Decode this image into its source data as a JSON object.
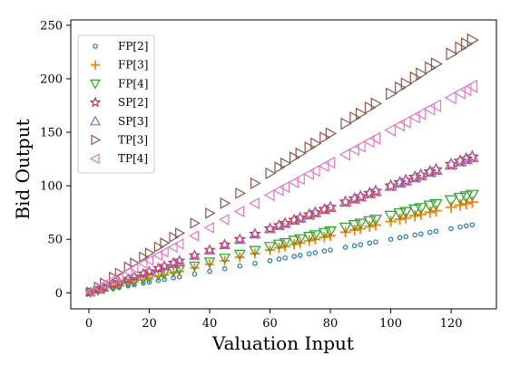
{
  "chart_data": {
    "type": "scatter",
    "title": "",
    "xlabel": "Valuation Input",
    "ylabel": "Bid Output",
    "xlim": [
      -6,
      135
    ],
    "ylim": [
      -15,
      255
    ],
    "xticks": [
      0,
      20,
      40,
      60,
      80,
      100,
      120
    ],
    "yticks": [
      0,
      50,
      100,
      150,
      200,
      250
    ],
    "grid": false,
    "legend_position": "top-left",
    "x": [
      0.5,
      3,
      5,
      8,
      10,
      13,
      15,
      18,
      20,
      23,
      25,
      28,
      30,
      35,
      40,
      45,
      50,
      55,
      60,
      63,
      65,
      68,
      70,
      73,
      75,
      78,
      80,
      85,
      88,
      90,
      93,
      95,
      100,
      103,
      105,
      108,
      110,
      113,
      115,
      120,
      123,
      125,
      127
    ],
    "series": [
      {
        "name": "FP[2]",
        "marker": "circle",
        "color": "#1f77b4",
        "slope": 0.5,
        "y": [
          0.25,
          1.5,
          2.5,
          4,
          5,
          6.5,
          7.5,
          9,
          10,
          11.5,
          12.5,
          14,
          15,
          17.5,
          20,
          22.5,
          25,
          27.5,
          30,
          31.5,
          32.5,
          34,
          35,
          36.5,
          37.5,
          39,
          40,
          42.5,
          44,
          45,
          46.5,
          47.5,
          50,
          51.5,
          52.5,
          54,
          55,
          56.5,
          57.5,
          60,
          61.5,
          62.5,
          63.5
        ]
      },
      {
        "name": "FP[3]",
        "marker": "plus",
        "color": "#ff7f0e",
        "slope": 0.667,
        "y": [
          0.33,
          2,
          3.3,
          5.3,
          6.7,
          8.7,
          10,
          12,
          13.3,
          15.3,
          16.7,
          18.7,
          20,
          23.3,
          26.7,
          30,
          33.3,
          36.7,
          40,
          42,
          43.3,
          45.3,
          46.7,
          48.7,
          50,
          52,
          53.3,
          56.7,
          58.7,
          60,
          62,
          63.3,
          66.7,
          68.7,
          70,
          72,
          73.3,
          75.3,
          76.7,
          80,
          82,
          83.3,
          84.7
        ]
      },
      {
        "name": "FP[4]",
        "marker": "triangle-down",
        "color": "#2ca02c",
        "slope": 0.72,
        "y": [
          0.36,
          2.2,
          3.6,
          5.8,
          7.2,
          9.4,
          10.8,
          13,
          14.4,
          16.6,
          18,
          20.2,
          21.6,
          25.2,
          28.8,
          32.4,
          36,
          39.6,
          43.2,
          45.4,
          46.8,
          49,
          50.4,
          52.6,
          54,
          56.2,
          57.6,
          61.2,
          63.4,
          64.8,
          67,
          68.4,
          72,
          74.2,
          75.6,
          77.8,
          79.2,
          81.4,
          82.8,
          86.4,
          88.6,
          90,
          91.4
        ]
      },
      {
        "name": "SP[2]",
        "marker": "star",
        "color": "#d62728",
        "slope": 1.0,
        "y": [
          0.5,
          3,
          5,
          8,
          10,
          13,
          15,
          18,
          20,
          23,
          25,
          28,
          30,
          35,
          40,
          45,
          50,
          55,
          60,
          63,
          65,
          68,
          70,
          73,
          75,
          78,
          80,
          85,
          88,
          90,
          93,
          95,
          100,
          103,
          105,
          108,
          110,
          113,
          115,
          120,
          123,
          125,
          127
        ]
      },
      {
        "name": "SP[3]",
        "marker": "triangle-up",
        "color": "#9467bd",
        "slope": 1.0,
        "y": [
          0.5,
          3,
          5,
          8,
          10,
          13,
          15,
          18,
          20,
          23,
          25,
          28,
          30,
          35,
          40,
          45,
          50,
          55,
          60,
          63,
          65,
          68,
          70,
          73,
          75,
          78,
          80,
          85,
          88,
          90,
          93,
          95,
          100,
          103,
          105,
          108,
          110,
          113,
          115,
          120,
          123,
          125,
          127
        ]
      },
      {
        "name": "TP[3]",
        "marker": "triangle-right",
        "color": "#8c564b",
        "slope": 1.86,
        "y": [
          0.9,
          5.6,
          9.3,
          14.9,
          18.6,
          24.2,
          27.9,
          33.5,
          37.2,
          42.8,
          46.5,
          52.1,
          55.8,
          65.1,
          74.4,
          83.7,
          93,
          102.3,
          111.6,
          117.2,
          120.9,
          126.5,
          130.2,
          135.8,
          139.5,
          145.1,
          148.8,
          158.1,
          163.7,
          167.4,
          173,
          176.7,
          186,
          191.6,
          195.3,
          200.9,
          204.6,
          210.2,
          213.9,
          223.2,
          228.8,
          232.5,
          236.2
        ]
      },
      {
        "name": "TP[4]",
        "marker": "triangle-left",
        "color": "#e377c2",
        "slope": 1.52,
        "y": [
          0.8,
          4.6,
          7.6,
          12.2,
          15.2,
          19.8,
          22.8,
          27.4,
          30.4,
          35,
          38,
          42.6,
          45.6,
          53.2,
          60.8,
          68.4,
          76,
          83.6,
          91.2,
          95.8,
          98.8,
          103.4,
          106.4,
          111,
          114,
          118.6,
          121.6,
          129.2,
          133.8,
          136.8,
          141.4,
          144.4,
          152,
          156.6,
          159.6,
          164.2,
          167.2,
          171.8,
          174.8,
          182.4,
          187,
          190,
          193
        ]
      }
    ]
  }
}
